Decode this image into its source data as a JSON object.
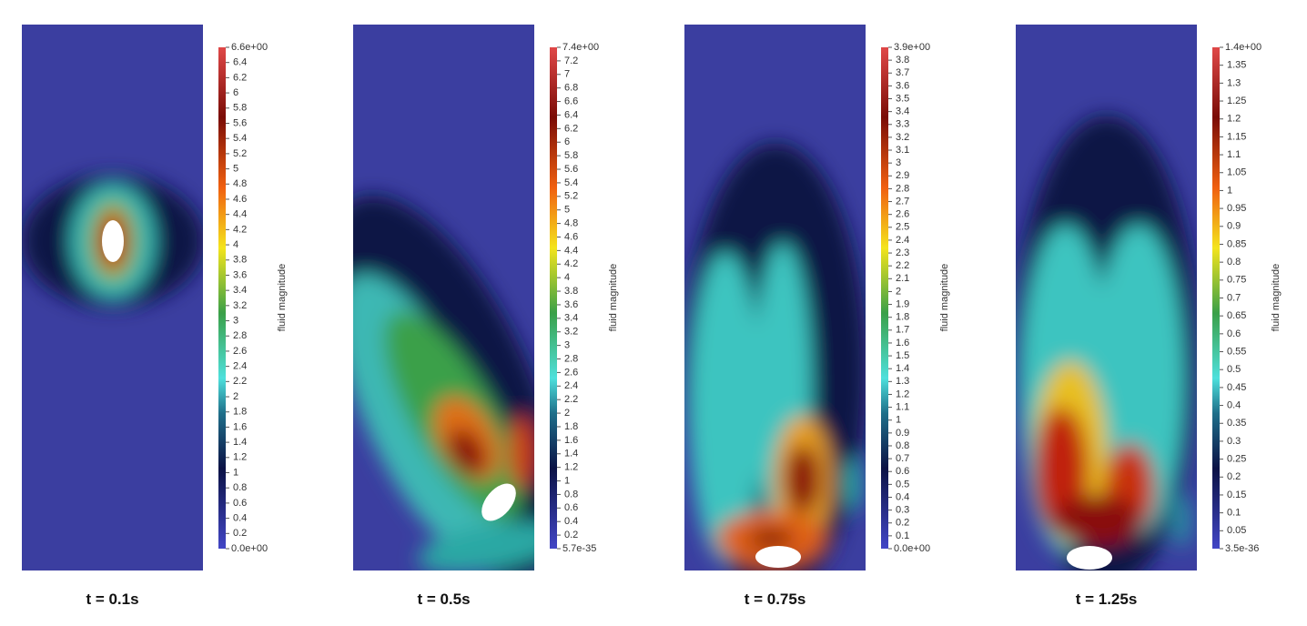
{
  "panels": [
    {
      "caption": "t = 0.1s",
      "colorbar": {
        "title": "fluid magnitude",
        "range": [
          {
            "value": 0,
            "label": "0.0e+00"
          },
          {
            "value": 6.6,
            "label": "6.6e+00"
          }
        ],
        "ticks": [
          0.2,
          0.4,
          0.6,
          0.8,
          1,
          1.2,
          1.4,
          1.6,
          1.8,
          2,
          2.2,
          2.4,
          2.6,
          2.8,
          3,
          3.2,
          3.4,
          3.6,
          3.8,
          4,
          4.2,
          4.4,
          4.6,
          4.8,
          5,
          5.2,
          5.4,
          5.6,
          5.8,
          6,
          6.2,
          6.4
        ]
      }
    },
    {
      "caption": "t = 0.5s",
      "colorbar": {
        "title": "fluid magnitude",
        "range": [
          {
            "value": 5.7e-35,
            "label": "5.7e-35"
          },
          {
            "value": 7.4,
            "label": "7.4e+00"
          }
        ],
        "ticks": [
          0.2,
          0.4,
          0.6,
          0.8,
          1,
          1.2,
          1.4,
          1.6,
          1.8,
          2,
          2.2,
          2.4,
          2.6,
          2.8,
          3,
          3.2,
          3.4,
          3.6,
          3.8,
          4,
          4.2,
          4.4,
          4.6,
          4.8,
          5,
          5.2,
          5.4,
          5.6,
          5.8,
          6,
          6.2,
          6.4,
          6.6,
          6.8,
          7,
          7.2
        ]
      }
    },
    {
      "caption": "t = 0.75s",
      "colorbar": {
        "title": "fluid magnitude",
        "range": [
          {
            "value": 0,
            "label": "0.0e+00"
          },
          {
            "value": 3.9,
            "label": "3.9e+00"
          }
        ],
        "ticks": [
          0.1,
          0.2,
          0.3,
          0.4,
          0.5,
          0.6,
          0.7,
          0.8,
          0.9,
          1,
          1.1,
          1.2,
          1.3,
          1.4,
          1.5,
          1.6,
          1.7,
          1.8,
          1.9,
          2,
          2.1,
          2.2,
          2.3,
          2.4,
          2.5,
          2.6,
          2.7,
          2.8,
          2.9,
          3,
          3.1,
          3.2,
          3.3,
          3.4,
          3.5,
          3.6,
          3.7,
          3.8
        ]
      }
    },
    {
      "caption": "t = 1.25s",
      "colorbar": {
        "title": "fluid magnitude",
        "range": [
          {
            "value": 3.5e-36,
            "label": "3.5e-36"
          },
          {
            "value": 1.4,
            "label": "1.4e+00"
          }
        ],
        "ticks": [
          0.05,
          0.1,
          0.15,
          0.2,
          0.25,
          0.3,
          0.35,
          0.4,
          0.45,
          0.5,
          0.55,
          0.6,
          0.65,
          0.7,
          0.75,
          0.8,
          0.85,
          0.9,
          0.95,
          1,
          1.05,
          1.1,
          1.15,
          1.2,
          1.25,
          1.3,
          1.35
        ]
      }
    }
  ]
}
